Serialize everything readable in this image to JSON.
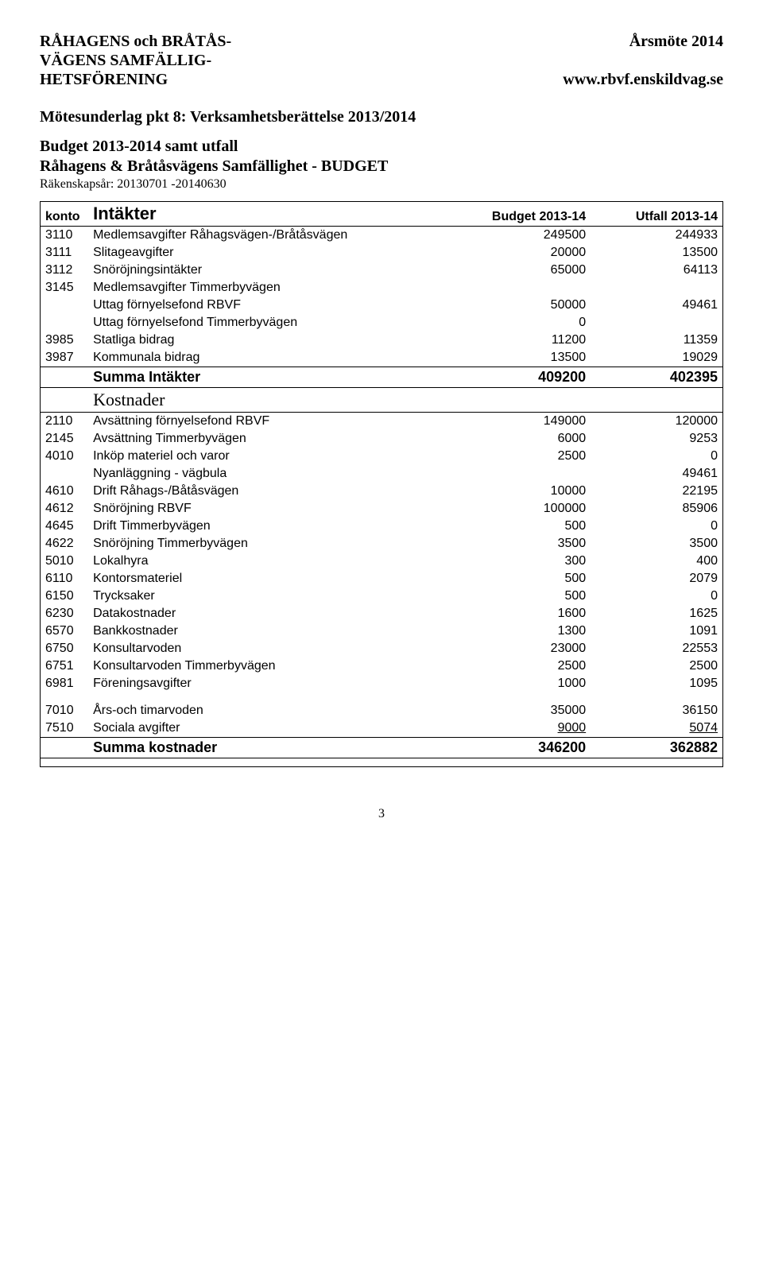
{
  "header": {
    "org_line1": "RÅHAGENS och BRÅTÅS-",
    "org_line2": "VÄGENS SAMFÄLLIG-",
    "org_line3": "HETSFÖRENING",
    "meeting": "Årsmöte 2014",
    "url": "www.rbvf.enskildvag.se"
  },
  "titles": {
    "doc_title": "Mötesunderlag pkt 8: Verksamhetsberättelse 2013/2014",
    "budget_title": "Budget 2013-2014 samt utfall",
    "entity_title": "Råhagens & Bråtåsvägens Samfällighet - BUDGET",
    "fiscal_year": "Räkenskapsår: 20130701 -20140630"
  },
  "table_headers": {
    "konto": "konto",
    "intakter": "Intäkter",
    "budget": "Budget 2013-14",
    "utfall": "Utfall 2013-14"
  },
  "intakter_rows": [
    {
      "konto": "3110",
      "desc": "Medlemsavgifter Råhagsvägen-/Bråtåsvägen",
      "budget": "249500",
      "utfall": "244933"
    },
    {
      "konto": "3111",
      "desc": "Slitageavgifter",
      "budget": "20000",
      "utfall": "13500"
    },
    {
      "konto": "3112",
      "desc": "Snöröjningsintäkter",
      "budget": "65000",
      "utfall": "64113"
    },
    {
      "konto": "3145",
      "desc": "Medlemsavgifter Timmerbyvägen",
      "budget": "",
      "utfall": ""
    },
    {
      "konto": "",
      "desc": "Uttag förnyelsefond RBVF",
      "budget": "50000",
      "utfall": "49461"
    },
    {
      "konto": "",
      "desc": "Uttag förnyelsefond Timmerbyvägen",
      "budget": "0",
      "utfall": ""
    },
    {
      "konto": "3985",
      "desc": "Statliga bidrag",
      "budget": "11200",
      "utfall": "11359"
    },
    {
      "konto": "3987",
      "desc": "Kommunala bidrag",
      "budget": "13500",
      "utfall": "19029"
    }
  ],
  "summa_intakter": {
    "label": "Summa Intäkter",
    "budget": "409200",
    "utfall": "402395"
  },
  "kostnader_label": "Kostnader",
  "kostnader_rows": [
    {
      "konto": "2110",
      "desc": "Avsättning förnyelsefond RBVF",
      "budget": "149000",
      "utfall": "120000"
    },
    {
      "konto": "2145",
      "desc": "Avsättning Timmerbyvägen",
      "budget": "6000",
      "utfall": "9253"
    },
    {
      "konto": "4010",
      "desc": "Inköp materiel och varor",
      "budget": "2500",
      "utfall": "0"
    },
    {
      "konto": "",
      "desc": "Nyanläggning - vägbula",
      "budget": "",
      "utfall": "49461"
    },
    {
      "konto": "4610",
      "desc": "Drift Råhags-/Båtåsvägen",
      "budget": "10000",
      "utfall": "22195"
    },
    {
      "konto": "4612",
      "desc": "Snöröjning RBVF",
      "budget": "100000",
      "utfall": "85906"
    },
    {
      "konto": "4645",
      "desc": "Drift Timmerbyvägen",
      "budget": "500",
      "utfall": "0"
    },
    {
      "konto": "4622",
      "desc": "Snöröjning Timmerbyvägen",
      "budget": "3500",
      "utfall": "3500"
    },
    {
      "konto": "5010",
      "desc": "Lokalhyra",
      "budget": "300",
      "utfall": "400"
    },
    {
      "konto": "6110",
      "desc": "Kontorsmateriel",
      "budget": "500",
      "utfall": "2079"
    },
    {
      "konto": "6150",
      "desc": "Trycksaker",
      "budget": "500",
      "utfall": "0"
    },
    {
      "konto": "6230",
      "desc": "Datakostnader",
      "budget": "1600",
      "utfall": "1625"
    },
    {
      "konto": "6570",
      "desc": "Bankkostnader",
      "budget": "1300",
      "utfall": "1091"
    },
    {
      "konto": "6750",
      "desc": "Konsultarvoden",
      "budget": "23000",
      "utfall": "22553"
    },
    {
      "konto": "6751",
      "desc": "Konsultarvoden Timmerbyvägen",
      "budget": "2500",
      "utfall": "2500"
    },
    {
      "konto": "6981",
      "desc": "Föreningsavgifter",
      "budget": "1000",
      "utfall": "1095"
    }
  ],
  "extra_rows": [
    {
      "konto": "7010",
      "desc": "Års-och timarvoden",
      "budget": "35000",
      "utfall": "36150"
    },
    {
      "konto": "7510",
      "desc": "Sociala avgifter",
      "budget": "9000",
      "utfall": "5074"
    }
  ],
  "summa_kostnader": {
    "label": "Summa kostnader",
    "budget": "346200",
    "utfall": "362882"
  },
  "page_number": "3"
}
